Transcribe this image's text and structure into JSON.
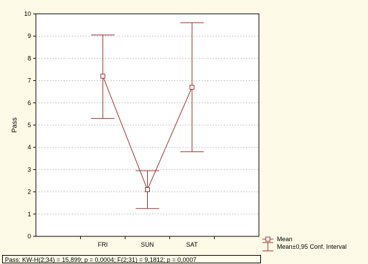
{
  "chart_data": {
    "type": "line",
    "categories": [
      "FRI",
      "SUN",
      "SAT"
    ],
    "series": [
      {
        "name": "Mean",
        "values": [
          7.2,
          2.1,
          6.7
        ],
        "ci_low": [
          5.3,
          1.25,
          3.8
        ],
        "ci_high": [
          9.05,
          2.95,
          9.6
        ]
      }
    ],
    "ylabel": "Pass",
    "xlabel": "",
    "ylim": [
      0,
      10
    ],
    "yticks": [
      "0",
      "1",
      "2",
      "3",
      "4",
      "5",
      "6",
      "7",
      "8",
      "9",
      "10"
    ],
    "grid": true,
    "legend": {
      "position": "bottom-right",
      "entries": [
        "Mean",
        "Mean±0,95 Conf. Interval"
      ]
    },
    "colors": {
      "line": "#a03030",
      "background": "#fdfbe8",
      "plot_bg": "#ffffff",
      "grid": "#c8c8c8"
    },
    "footer": "Pass:  KW-H(2;34) = 15,899; p = 0,0004;  F(2;31) = 9,1812; p = 0,0007"
  }
}
